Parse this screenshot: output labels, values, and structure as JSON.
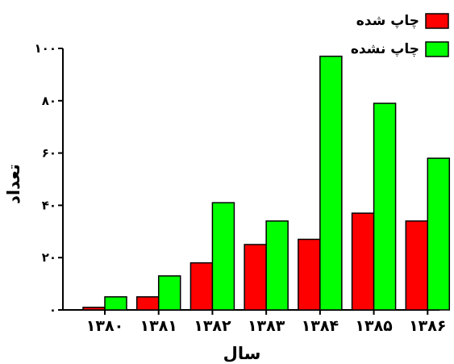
{
  "chart_data": {
    "type": "bar",
    "categories": [
      "۱۳۸۰",
      "۱۳۸۱",
      "۱۳۸۲",
      "۱۳۸۳",
      "۱۳۸۴",
      "۱۳۸۵",
      "۱۳۸۶"
    ],
    "series": [
      {
        "name": "چاپ شده",
        "color": "#ff0000",
        "values": [
          1,
          5,
          18,
          25,
          27,
          37,
          34
        ]
      },
      {
        "name": "چاپ نشده",
        "color": "#00ff00",
        "values": [
          5,
          13,
          41,
          34,
          97,
          79,
          58
        ]
      }
    ],
    "xlabel": "سال",
    "ylabel": "تعداد",
    "ylim": [
      0,
      100
    ],
    "yticks": [
      0,
      20,
      40,
      60,
      80,
      100
    ],
    "ytick_labels": [
      "۰",
      "۲۰",
      "۴۰",
      "۶۰",
      "۸۰",
      "۱۰۰"
    ],
    "grid": false,
    "legend_position": "top-right"
  }
}
